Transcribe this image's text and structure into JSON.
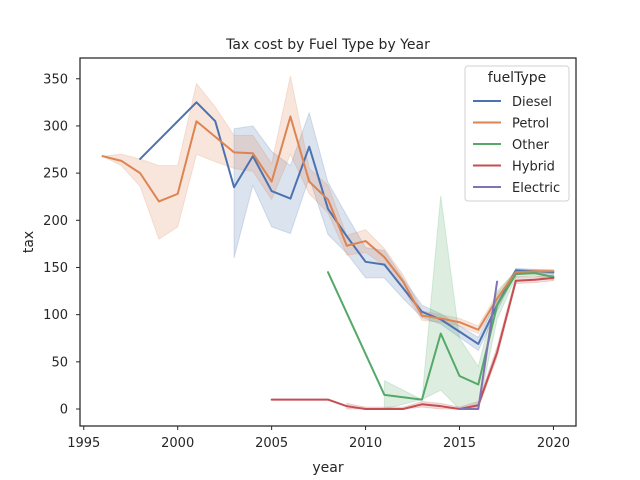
{
  "chart_data": {
    "type": "line",
    "title": "Tax cost by Fuel Type by Year",
    "xlabel": "year",
    "ylabel": "tax",
    "xlim": [
      1994.8,
      2021.2
    ],
    "ylim": [
      -18,
      372
    ],
    "xticks": [
      1995,
      2000,
      2005,
      2010,
      2015,
      2020
    ],
    "yticks": [
      0,
      50,
      100,
      150,
      200,
      250,
      300,
      350
    ],
    "grid": false,
    "legend": {
      "title": "fuelType",
      "position": "top-right"
    },
    "series": [
      {
        "name": "Diesel",
        "color": "#4c72b0",
        "points": [
          [
            1998,
            265
          ],
          [
            2001,
            325
          ],
          [
            2002,
            305
          ],
          [
            2003,
            235
          ],
          [
            2004,
            268
          ],
          [
            2005,
            231
          ],
          [
            2006,
            223
          ],
          [
            2007,
            278
          ],
          [
            2008,
            212
          ],
          [
            2009,
            183
          ],
          [
            2010,
            156
          ],
          [
            2011,
            153
          ],
          [
            2012,
            128
          ],
          [
            2013,
            103
          ],
          [
            2014,
            95
          ],
          [
            2015,
            82
          ],
          [
            2016,
            69
          ],
          [
            2017,
            110
          ],
          [
            2018,
            147
          ],
          [
            2019,
            146
          ],
          [
            2020,
            145
          ]
        ],
        "ci": [
          [
            2003,
            160,
            297
          ],
          [
            2004,
            237,
            300
          ],
          [
            2005,
            193,
            273
          ],
          [
            2006,
            186,
            258
          ],
          [
            2007,
            245,
            314
          ],
          [
            2008,
            185,
            240
          ],
          [
            2009,
            165,
            205
          ],
          [
            2010,
            139,
            171
          ],
          [
            2011,
            139,
            168
          ],
          [
            2012,
            117,
            138
          ],
          [
            2013,
            97,
            110
          ],
          [
            2014,
            90,
            101
          ],
          [
            2015,
            76,
            88
          ],
          [
            2016,
            62,
            76
          ],
          [
            2017,
            104,
            116
          ],
          [
            2018,
            144,
            149
          ],
          [
            2019,
            144,
            148
          ],
          [
            2020,
            143,
            147
          ]
        ]
      },
      {
        "name": "Petrol",
        "color": "#dd8452",
        "points": [
          [
            1996,
            268
          ],
          [
            1997,
            263
          ],
          [
            1998,
            250
          ],
          [
            1999,
            220
          ],
          [
            2000,
            228
          ],
          [
            2001,
            305
          ],
          [
            2003,
            272
          ],
          [
            2004,
            271
          ],
          [
            2005,
            241
          ],
          [
            2006,
            310
          ],
          [
            2007,
            241
          ],
          [
            2008,
            222
          ],
          [
            2009,
            173
          ],
          [
            2010,
            178
          ],
          [
            2011,
            161
          ],
          [
            2012,
            135
          ],
          [
            2013,
            99
          ],
          [
            2014,
            96
          ],
          [
            2015,
            92
          ],
          [
            2016,
            84
          ],
          [
            2017,
            117
          ],
          [
            2018,
            145
          ],
          [
            2019,
            146
          ],
          [
            2020,
            146
          ]
        ],
        "ci": [
          [
            1996,
            268,
            268
          ],
          [
            1997,
            258,
            270
          ],
          [
            1998,
            236,
            265
          ],
          [
            1999,
            180,
            258
          ],
          [
            2000,
            193,
            258
          ],
          [
            2001,
            270,
            345
          ],
          [
            2002,
            262,
            320
          ],
          [
            2003,
            255,
            290
          ],
          [
            2004,
            252,
            290
          ],
          [
            2005,
            222,
            260
          ],
          [
            2006,
            270,
            353
          ],
          [
            2007,
            228,
            255
          ],
          [
            2008,
            208,
            237
          ],
          [
            2009,
            163,
            184
          ],
          [
            2010,
            166,
            190
          ],
          [
            2011,
            152,
            170
          ],
          [
            2012,
            128,
            142
          ],
          [
            2013,
            94,
            104
          ],
          [
            2014,
            92,
            100
          ],
          [
            2015,
            88,
            96
          ],
          [
            2016,
            80,
            88
          ],
          [
            2017,
            112,
            122
          ],
          [
            2018,
            143,
            147
          ],
          [
            2019,
            145,
            148
          ],
          [
            2020,
            144,
            148
          ]
        ]
      },
      {
        "name": "Other",
        "color": "#55a868",
        "points": [
          [
            2008,
            145
          ],
          [
            2011,
            15
          ],
          [
            2013,
            10
          ],
          [
            2014,
            80
          ],
          [
            2015,
            35
          ],
          [
            2016,
            26
          ],
          [
            2017,
            110
          ],
          [
            2018,
            143
          ],
          [
            2019,
            144
          ],
          [
            2020,
            140
          ]
        ],
        "ci": [
          [
            2011,
            0,
            30
          ],
          [
            2013,
            10,
            10
          ],
          [
            2014,
            20,
            226
          ],
          [
            2015,
            0,
            75
          ],
          [
            2016,
            0,
            45
          ],
          [
            2017,
            95,
            125
          ],
          [
            2018,
            140,
            146
          ],
          [
            2019,
            141,
            147
          ],
          [
            2020,
            137,
            143
          ]
        ]
      },
      {
        "name": "Hybrid",
        "color": "#c44e52",
        "points": [
          [
            2005,
            10
          ],
          [
            2006,
            10
          ],
          [
            2007,
            10
          ],
          [
            2008,
            10
          ],
          [
            2009,
            3
          ],
          [
            2010,
            0
          ],
          [
            2011,
            0
          ],
          [
            2012,
            0
          ],
          [
            2013,
            5
          ],
          [
            2014,
            3
          ],
          [
            2015,
            0
          ],
          [
            2016,
            4
          ],
          [
            2017,
            60
          ],
          [
            2018,
            136
          ],
          [
            2019,
            137
          ],
          [
            2020,
            139
          ]
        ],
        "ci": [
          [
            2009,
            0,
            6
          ],
          [
            2010,
            0,
            2
          ],
          [
            2011,
            0,
            2
          ],
          [
            2012,
            0,
            2
          ],
          [
            2013,
            2,
            8
          ],
          [
            2014,
            0,
            6
          ],
          [
            2015,
            0,
            2
          ],
          [
            2016,
            1,
            8
          ],
          [
            2017,
            55,
            66
          ],
          [
            2018,
            133,
            140
          ],
          [
            2019,
            134,
            140
          ],
          [
            2020,
            136,
            142
          ]
        ]
      },
      {
        "name": "Electric",
        "color": "#8172b3",
        "points": [
          [
            2015,
            0
          ],
          [
            2016,
            0
          ],
          [
            2017,
            135
          ]
        ],
        "ci": []
      }
    ]
  }
}
